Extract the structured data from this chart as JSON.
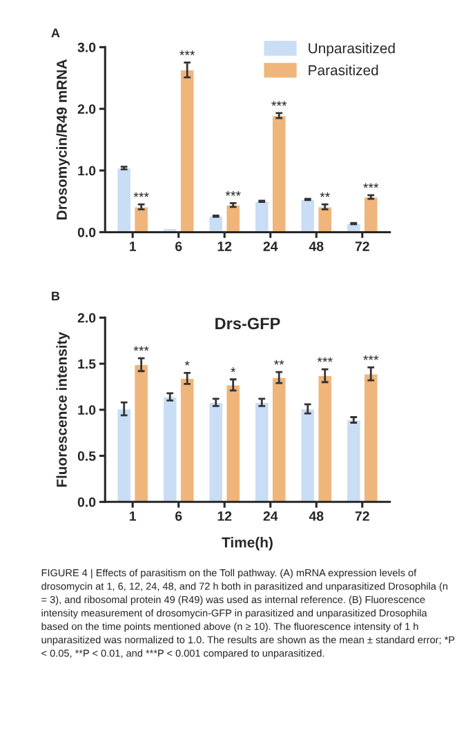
{
  "chart_data": [
    {
      "type": "bar",
      "categories": [
        "1",
        "6",
        "12",
        "24",
        "48",
        "72"
      ],
      "ylabel": "Drosomycin/R49 mRNA",
      "series": [
        {
          "name": "Unparasitized",
          "color": "#c9ddf5",
          "values": [
            1.04,
            0.06,
            0.26,
            0.5,
            0.53,
            0.14
          ],
          "errors": [
            0.02,
            null,
            0.01,
            0.01,
            0.01,
            0.01
          ]
        },
        {
          "name": "Parasitized",
          "color": "#f0b57a",
          "values": [
            0.41,
            2.63,
            0.44,
            1.89,
            0.41,
            0.57
          ],
          "errors": [
            0.04,
            0.12,
            0.03,
            0.04,
            0.04,
            0.03
          ]
        }
      ],
      "ylim": [
        0,
        3
      ],
      "yticks": [
        {
          "value": 0,
          "label": "0.0"
        },
        {
          "value": 1,
          "label": "1.0"
        },
        {
          "value": 2,
          "label": "2.0"
        },
        {
          "value": 3,
          "label": "3.0"
        }
      ],
      "legend": "top right",
      "grid": false,
      "annotations": [
        "A",
        {
          "text": "***",
          "x": "1",
          "y": 0.41
        },
        {
          "text": "***",
          "x": "6",
          "y": 2.63
        },
        {
          "text": "***",
          "x": "12",
          "y": 0.44
        },
        {
          "text": "***",
          "x": "24",
          "y": 1.89
        },
        {
          "text": "**",
          "x": "48",
          "y": 0.41
        },
        {
          "text": "***",
          "x": "72",
          "y": 0.57
        }
      ]
    },
    {
      "type": "bar",
      "title": "Drs-GFP",
      "categories": [
        "1",
        "6",
        "12",
        "24",
        "48",
        "72"
      ],
      "xlabel": "Time(h)",
      "ylabel": "Fluorescence intensity",
      "series": [
        {
          "color": "#c9ddf5",
          "values": [
            1.01,
            1.14,
            1.08,
            1.08,
            1.01,
            0.89
          ],
          "errors": [
            0.07,
            0.04,
            0.04,
            0.04,
            0.05,
            0.03
          ]
        },
        {
          "color": "#f0b57a",
          "values": [
            1.49,
            1.34,
            1.27,
            1.35,
            1.37,
            1.39
          ],
          "errors": [
            0.07,
            0.06,
            0.06,
            0.06,
            0.07,
            0.07
          ]
        }
      ],
      "ylim": [
        0,
        2
      ],
      "yticks": [
        {
          "value": 0,
          "label": "0.0"
        },
        {
          "value": 0.5,
          "label": "0.5"
        },
        {
          "value": 1,
          "label": "1.0"
        },
        {
          "value": 1.5,
          "label": "1.5"
        },
        {
          "value": 2,
          "label": "2.0"
        }
      ],
      "grid": false,
      "annotations": [
        "B",
        {
          "text": "***",
          "x": "1",
          "y": 1.49
        },
        {
          "text": "*",
          "x": "6",
          "y": 1.34
        },
        {
          "text": "*",
          "x": "12",
          "y": 1.27
        },
        {
          "text": "**",
          "x": "24",
          "y": 1.35
        },
        {
          "text": "***",
          "x": "48",
          "y": 1.37
        },
        {
          "text": "***",
          "x": "72",
          "y": 1.39
        },
        "FIGURE 4 | Effects of parasitism on the Toll pathway. (A) mRNA expression levels of drosomycin at 1, 6, 12, 24, 48, and 72 h both in parasitized and unparasitized Drosophila (n = 3), and ribosomal protein 49 (R49) was used as internal reference. (B) Fluorescence intensity measurement of drosomycin-GFP in parasitized and unparasitized Drosophila based on the time points mentioned above (n ≥ 10). The fluorescence intensity of 1 h unparasitized was normalized to 1.0. The results are shown as the mean ± standard error; *P < 0.05, **P < 0.01, and ***P < 0.001 compared to unparasitized."
      ]
    }
  ]
}
